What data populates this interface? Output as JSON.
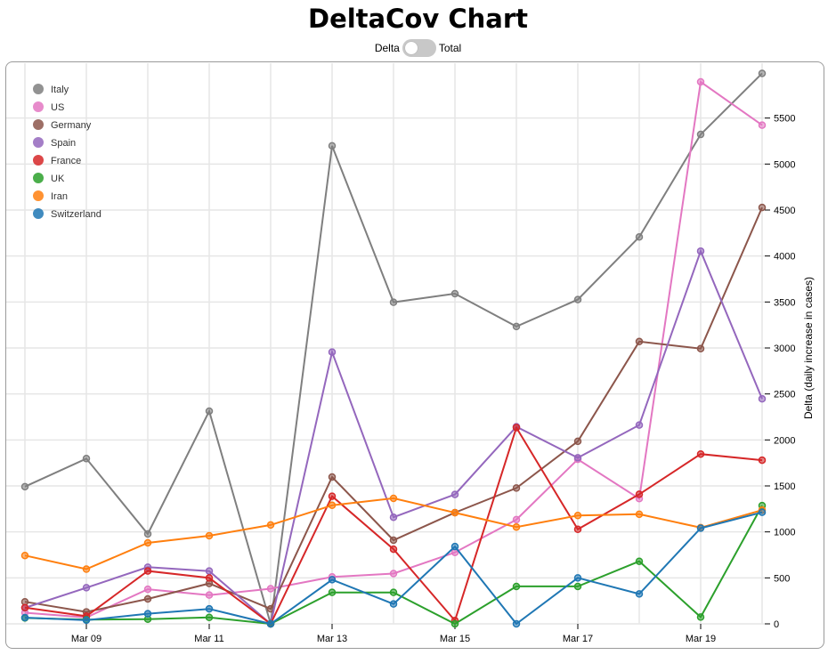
{
  "header": {
    "title": "DeltaCov Chart",
    "toggle_left_label": "Delta",
    "toggle_right_label": "Total",
    "toggle_state": "Delta"
  },
  "chart_data": {
    "type": "line",
    "x": [
      "Mar 08",
      "Mar 09",
      "Mar 10",
      "Mar 11",
      "Mar 12",
      "Mar 13",
      "Mar 14",
      "Mar 15",
      "Mar 16",
      "Mar 17",
      "Mar 18",
      "Mar 19",
      "Mar 20"
    ],
    "x_tick_labels": [
      "Mar 09",
      "Mar 11",
      "Mar 13",
      "Mar 15",
      "Mar 17",
      "Mar 19"
    ],
    "y_ticks": [
      0,
      500,
      1000,
      1500,
      2000,
      2500,
      3000,
      3500,
      4000,
      4500,
      5000,
      5500
    ],
    "ylim": [
      0,
      6000
    ],
    "ylabel": "Delta (daily increase in cases)",
    "grid": true,
    "legend_position": "top-left",
    "series": [
      {
        "name": "Italy",
        "color": "#7f7f7f",
        "values": [
          1492,
          1797,
          977,
          2313,
          0,
          5198,
          3497,
          3590,
          3233,
          3526,
          4207,
          5322,
          5986
        ]
      },
      {
        "name": "US",
        "color": "#e377c2",
        "values": [
          121,
          70,
          376,
          313,
          382,
          510,
          547,
          777,
          1133,
          1789,
          1362,
          5894,
          5423
        ]
      },
      {
        "name": "Germany",
        "color": "#8c564b",
        "values": [
          240,
          130,
          271,
          439,
          163,
          1597,
          910,
          1210,
          1477,
          1985,
          3070,
          2993,
          4528
        ]
      },
      {
        "name": "Spain",
        "color": "#9467bd",
        "values": [
          174,
          393,
          616,
          574,
          0,
          2955,
          1159,
          1407,
          2144,
          1806,
          2162,
          4053,
          2447
        ]
      },
      {
        "name": "France",
        "color": "#d62728",
        "values": [
          177,
          83,
          575,
          499,
          0,
          1388,
          812,
          36,
          2134,
          1028,
          1409,
          1846,
          1780
        ]
      },
      {
        "name": "UK",
        "color": "#2ca02c",
        "values": [
          64,
          46,
          51,
          70,
          0,
          342,
          342,
          0,
          407,
          407,
          680,
          74,
          1286
        ]
      },
      {
        "name": "Iran",
        "color": "#ff7f0e",
        "values": [
          743,
          595,
          881,
          958,
          1075,
          1289,
          1365,
          1209,
          1053,
          1178,
          1192,
          1046,
          1237
        ]
      },
      {
        "name": "Switzerland",
        "color": "#1f77b4",
        "values": [
          68,
          40,
          110,
          163,
          0,
          480,
          216,
          841,
          0,
          500,
          325,
          1040,
          1213
        ]
      }
    ]
  }
}
